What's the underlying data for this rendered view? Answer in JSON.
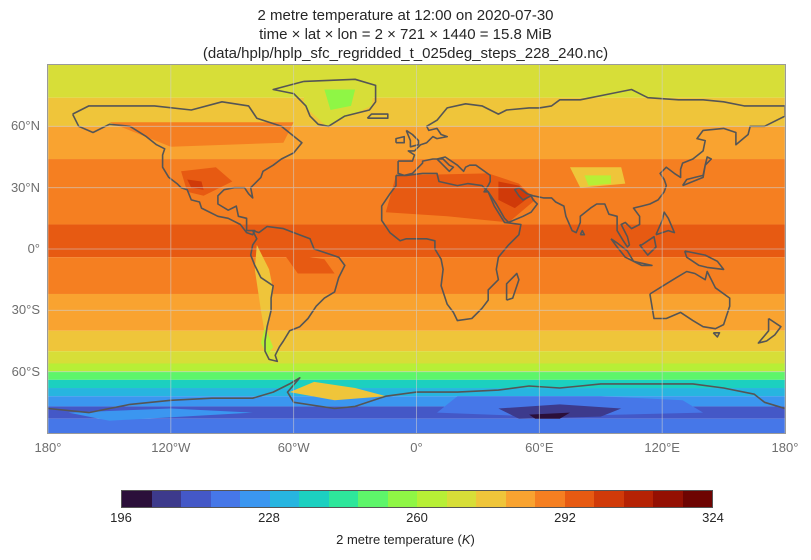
{
  "title": {
    "line1": "2 metre temperature at 12:00 on 2020-07-30",
    "line2": "time × lat × lon = 2 × 721 × 1440 = 15.8 MiB",
    "line3": "(data/hplp/hplp_sfc_regridded_t_025deg_steps_228_240.nc)"
  },
  "map": {
    "lat_ticks": [
      "60°N",
      "30°N",
      "0°",
      "30°S",
      "60°S"
    ],
    "lat_tick_values": [
      60,
      30,
      0,
      -30,
      -60
    ],
    "lon_ticks": [
      "180°",
      "120°W",
      "60°W",
      "0°",
      "60°E",
      "120°E",
      "180°"
    ],
    "lon_tick_values": [
      -180,
      -120,
      -60,
      0,
      60,
      120,
      180
    ],
    "lat_range": [
      -90,
      90
    ],
    "lon_range": [
      -180,
      180
    ],
    "grid": true,
    "coastlines": true
  },
  "colorbar": {
    "label": "2 metre temperature (K)",
    "tick_labels": [
      "196",
      "228",
      "260",
      "292",
      "324"
    ],
    "range": [
      196,
      324
    ],
    "levels": 20,
    "colors": [
      "#2b0f3a",
      "#3d3a8c",
      "#4458c7",
      "#4677e8",
      "#3b96f0",
      "#27b5e0",
      "#1cd0c0",
      "#2ee69b",
      "#5ef56a",
      "#8ff645",
      "#b7ef36",
      "#d7de38",
      "#efc53a",
      "#f9a330",
      "#f57f21",
      "#e75a12",
      "#d03a09",
      "#b52204",
      "#941003",
      "#6e0402"
    ],
    "orientation": "horizontal",
    "placement": "bottom"
  }
}
